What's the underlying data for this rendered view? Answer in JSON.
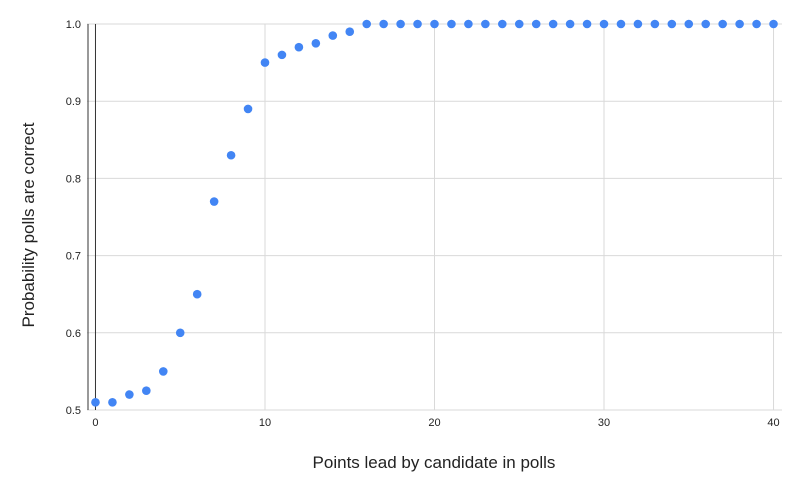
{
  "chart_data": {
    "type": "scatter",
    "title": "",
    "xlabel": "Points lead by candidate in polls",
    "ylabel": "Probability polls are correct",
    "xlim": [
      -0.5,
      40.5
    ],
    "ylim": [
      0.5,
      1.0
    ],
    "x_ticks": [
      0,
      10,
      20,
      30,
      40
    ],
    "y_ticks": [
      0.5,
      0.6,
      0.7,
      0.8,
      0.9,
      1.0
    ],
    "x_tick_labels": [
      "0",
      "10",
      "20",
      "30",
      "40"
    ],
    "y_tick_labels": [
      "0.5",
      "0.6",
      "0.7",
      "0.8",
      "0.9",
      "1.0"
    ],
    "grid": true,
    "point_color": "#4285F4",
    "gridline_color": "#d9d9d9",
    "series": [
      {
        "x": [
          0,
          1,
          2,
          3,
          4,
          5,
          6,
          7,
          8,
          9,
          10,
          11,
          12,
          13,
          14,
          15,
          16,
          17,
          18,
          19,
          20,
          21,
          22,
          23,
          24,
          25,
          26,
          27,
          28,
          29,
          30,
          31,
          32,
          33,
          34,
          35,
          36,
          37,
          38,
          39,
          40
        ],
        "y": [
          0.51,
          0.51,
          0.52,
          0.525,
          0.55,
          0.6,
          0.65,
          0.77,
          0.83,
          0.89,
          0.95,
          0.96,
          0.97,
          0.975,
          0.985,
          0.99,
          1.0,
          1.0,
          1.0,
          1.0,
          1.0,
          1.0,
          1.0,
          1.0,
          1.0,
          1.0,
          1.0,
          1.0,
          1.0,
          1.0,
          1.0,
          1.0,
          1.0,
          1.0,
          1.0,
          1.0,
          1.0,
          1.0,
          1.0,
          1.0,
          1.0
        ]
      }
    ]
  }
}
